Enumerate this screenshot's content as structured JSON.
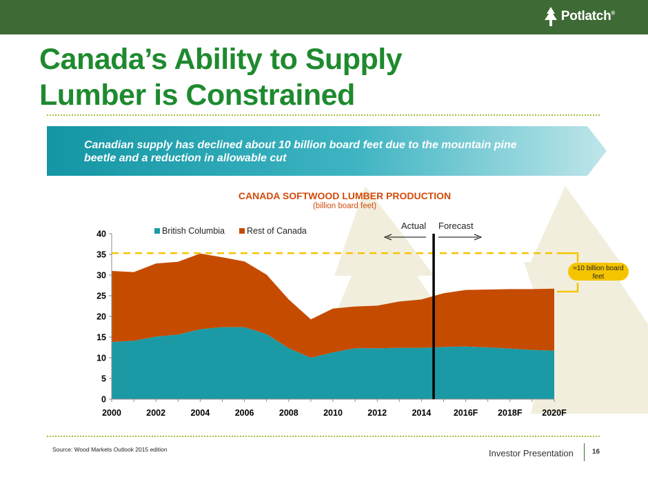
{
  "header": {
    "logo_text": "Potlatch",
    "logo_mark": "®"
  },
  "title": {
    "line1": "Canada’s Ability to Supply",
    "line2": "Lumber is Constrained"
  },
  "banner": {
    "text": "Canadian supply has declined about 10 billion board feet due to the mountain pine beetle and a reduction in allowable cut"
  },
  "chart_data": {
    "type": "area",
    "stacked": true,
    "title": "CANADA SOFTWOOD LUMBER PRODUCTION",
    "subtitle": "(billion board feet)",
    "x": [
      "2000",
      "2001",
      "2002",
      "2003",
      "2004",
      "2005",
      "2006",
      "2007",
      "2008",
      "2009",
      "2010",
      "2011",
      "2012",
      "2013",
      "2014",
      "2015",
      "2016F",
      "2017F",
      "2018F",
      "2019F",
      "2020F"
    ],
    "x_tick_labels": [
      "2000",
      "2002",
      "2004",
      "2006",
      "2008",
      "2010",
      "2012",
      "2014",
      "2016F",
      "2018F",
      "2020F"
    ],
    "series": [
      {
        "name": "British Columbia",
        "color": "#1b9aa5",
        "values": [
          13.8,
          14.1,
          15.1,
          15.6,
          16.9,
          17.4,
          17.4,
          15.7,
          12.3,
          10.0,
          11.3,
          12.3,
          12.3,
          12.4,
          12.4,
          12.6,
          12.7,
          12.5,
          12.2,
          11.9,
          11.7
        ]
      },
      {
        "name": "Rest of Canada",
        "color": "#c54b00",
        "values": [
          17.2,
          16.6,
          17.7,
          17.6,
          18.3,
          16.9,
          15.9,
          14.4,
          11.8,
          9.3,
          10.6,
          10.1,
          10.3,
          11.2,
          11.7,
          13.0,
          13.7,
          14.0,
          14.4,
          14.7,
          15.0
        ]
      }
    ],
    "ylim": [
      0,
      40
    ],
    "yticks": [
      0,
      5,
      10,
      15,
      20,
      25,
      30,
      35,
      40
    ],
    "legend_position": "top-left",
    "annotations": {
      "actual_label": "Actual",
      "forecast_label": "Forecast",
      "divider_x": 14.55,
      "dashed_line_y": 35.3,
      "bracket_from_y": 35.3,
      "bracket_to_y": 26.0,
      "callout": "≈10 billion board feet"
    }
  },
  "footer": {
    "source": "Source: Wood Markets Outlook 2015 edition",
    "label": "Investor Presentation",
    "page": "16"
  },
  "colors": {
    "header_green": "#3e6b35",
    "title_green": "#1e8a2f",
    "banner_teal": "#1b9aa5",
    "accent_orange": "#d24b0a",
    "dashed_yellow": "#f5c400"
  }
}
